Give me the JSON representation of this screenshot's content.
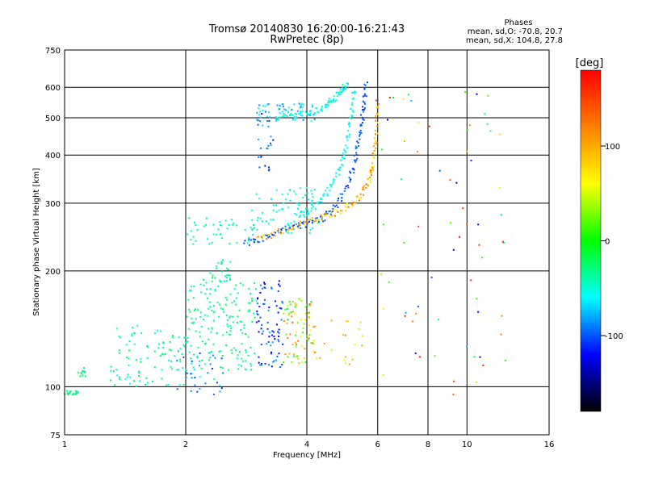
{
  "chart_data": {
    "type": "scatter",
    "title": "Tromsø 20140830 16:20:00-16:21:43",
    "subtitle": "RwPretec (8p)",
    "xlabel": "Frequency [MHz]",
    "ylabel": "Stationary phase Virtual Height [km]",
    "x_scale": "log",
    "y_scale": "log",
    "xlim": [
      1,
      16
    ],
    "ylim": [
      75,
      750
    ],
    "x_ticks": [
      1,
      2,
      4,
      6,
      8,
      10,
      16
    ],
    "y_ticks": [
      75,
      100,
      200,
      300,
      400,
      500,
      600,
      750
    ],
    "grid": true,
    "stats": {
      "header": "Phases",
      "line_o": "mean, sd,O: -70.8, 20.7",
      "line_x": "mean, sd,X: 104.8, 27.8"
    },
    "colorbar": {
      "label": "[deg]",
      "range": [
        -180,
        180
      ],
      "ticks": [
        100,
        0,
        -100
      ],
      "colors": [
        "#ff0000",
        "#ff8000",
        "#ffff00",
        "#00ff00",
        "#00ffff",
        "#0000ff",
        "#000000"
      ]
    },
    "clusters": [
      {
        "f": [
          1.0,
          1.08
        ],
        "h": [
          95,
          98
        ],
        "phase": [
          -40,
          -20
        ],
        "n": 22
      },
      {
        "f": [
          1.07,
          1.13
        ],
        "h": [
          105,
          112
        ],
        "phase": [
          -40,
          -20
        ],
        "n": 12
      },
      {
        "f": [
          1.3,
          2.0
        ],
        "h": [
          100,
          145
        ],
        "phase": [
          -60,
          -20
        ],
        "n": 90
      },
      {
        "f": [
          1.9,
          2.5
        ],
        "h": [
          95,
          125
        ],
        "phase": [
          -110,
          -50
        ],
        "n": 40
      },
      {
        "f": [
          2.0,
          3.0
        ],
        "h": [
          110,
          190
        ],
        "phase": [
          -50,
          -20
        ],
        "n": 170
      },
      {
        "f": [
          2.3,
          2.6
        ],
        "h": [
          180,
          215
        ],
        "phase": [
          -50,
          -20
        ],
        "n": 30
      },
      {
        "f": [
          3.0,
          3.5
        ],
        "h": [
          112,
          190
        ],
        "phase": [
          -130,
          -80
        ],
        "n": 80
      },
      {
        "f": [
          3.5,
          4.2
        ],
        "h": [
          115,
          170
        ],
        "phase": [
          -20,
          140
        ],
        "n": 80
      },
      {
        "f": [
          4.0,
          5.5
        ],
        "h": [
          114,
          150
        ],
        "phase": [
          40,
          120
        ],
        "n": 25
      },
      {
        "f": [
          2.0,
          3.0
        ],
        "h": [
          235,
          275
        ],
        "phase": [
          -50,
          -30
        ],
        "n": 45
      },
      {
        "f": [
          2.9,
          4.3
        ],
        "h": [
          250,
          330
        ],
        "phase": [
          -70,
          -40
        ],
        "n": 75
      },
      {
        "f": [
          3.0,
          3.3
        ],
        "h": [
          360,
          520
        ],
        "phase": [
          -120,
          -70
        ],
        "n": 25
      },
      {
        "f": [
          3.0,
          4.2
        ],
        "h": [
          490,
          545
        ],
        "phase": [
          -90,
          -50
        ],
        "n": 60
      },
      {
        "f": [
          5.8,
          12.5
        ],
        "h": [
          95,
          600
        ],
        "phase": [
          -150,
          170
        ],
        "n": 70
      }
    ],
    "traces": [
      {
        "name": "",
        "f": [
          2.8,
          3.2,
          3.6,
          4.0,
          4.4,
          4.8,
          5.1,
          5.3,
          5.45,
          5.55,
          5.62
        ],
        "h": [
          235,
          245,
          258,
          265,
          275,
          300,
          340,
          400,
          470,
          540,
          620
        ],
        "phase": [
          -110,
          -90
        ]
      },
      {
        "name": "",
        "f": [
          3.0,
          3.5,
          4.0,
          4.5,
          5.0,
          5.4,
          5.7,
          5.85,
          5.95,
          6.0
        ],
        "h": [
          240,
          255,
          268,
          278,
          292,
          310,
          340,
          380,
          440,
          560
        ],
        "phase": [
          60,
          130
        ]
      },
      {
        "name": "",
        "f": [
          3.4,
          3.8,
          4.2,
          4.5,
          4.7,
          4.9,
          5.05
        ],
        "h": [
          505,
          510,
          520,
          540,
          565,
          590,
          620
        ],
        "phase": [
          -70,
          -40
        ]
      },
      {
        "name": "",
        "f": [
          3.8,
          4.2,
          4.5,
          4.8,
          5.0,
          5.15,
          5.25
        ],
        "h": [
          275,
          295,
          320,
          360,
          420,
          500,
          600
        ],
        "phase": [
          -70,
          -45
        ]
      }
    ]
  }
}
